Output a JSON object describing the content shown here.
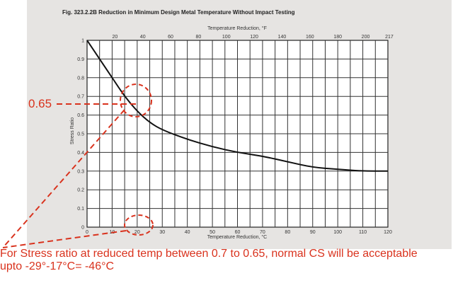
{
  "figure": {
    "title": "Fig. 323.2.2B    Reduction in Minimum Design Metal Temperature Without Impact Testing"
  },
  "chart_data": {
    "type": "line",
    "title": "Reduction in Minimum Design Metal Temperature Without Impact Testing",
    "ylabel": "Stress Ratio",
    "xlabel_bottom": "Temperature Reduction, °C",
    "xlabel_top": "Temperature Reduction, °F",
    "x_ticks_c": [
      "0",
      "10",
      "20",
      "30",
      "40",
      "50",
      "60",
      "70",
      "80",
      "90",
      "100",
      "110",
      "120"
    ],
    "x_ticks_f": [
      "20",
      "40",
      "60",
      "80",
      "100",
      "120",
      "140",
      "160",
      "180",
      "200",
      "217"
    ],
    "y_ticks": [
      "0",
      "0.1",
      "0.2",
      "0.3",
      "0.4",
      "0.5",
      "0.6",
      "0.7",
      "0.8",
      "0.9",
      "1"
    ],
    "xlim": [
      0,
      120
    ],
    "ylim": [
      0,
      1
    ],
    "grid": true,
    "series": [
      {
        "name": "Stress ratio curve",
        "x": [
          0,
          5,
          10,
          15,
          20,
          25,
          30,
          40,
          50,
          60,
          70,
          80,
          90,
          100,
          110,
          120
        ],
        "y": [
          1.0,
          0.9,
          0.8,
          0.7,
          0.62,
          0.56,
          0.52,
          0.47,
          0.43,
          0.4,
          0.38,
          0.35,
          0.32,
          0.31,
          0.3,
          0.3
        ]
      }
    ]
  },
  "annotations": {
    "left_value": "0.65",
    "caption_line1": "For Stress ratio at reduced temp between 0.7 to 0.65, normal CS will be acceptable",
    "caption_line2": "upto -29°-17°C= -46°C",
    "color": "#d9321d"
  }
}
